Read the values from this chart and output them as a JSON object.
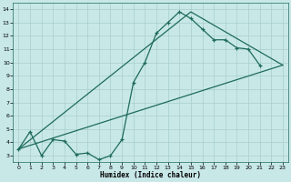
{
  "bg_color": "#c8e8e8",
  "grid_color": "#a8cece",
  "line_color": "#1e6b5a",
  "xlabel": "Humidex (Indice chaleur)",
  "xlim": [
    -0.5,
    23.5
  ],
  "ylim": [
    2.5,
    14.5
  ],
  "xticks": [
    0,
    1,
    2,
    3,
    4,
    5,
    6,
    7,
    8,
    9,
    10,
    11,
    12,
    13,
    14,
    15,
    16,
    17,
    18,
    19,
    20,
    21,
    22,
    23
  ],
  "yticks": [
    3,
    4,
    5,
    6,
    7,
    8,
    9,
    10,
    11,
    12,
    13,
    14
  ],
  "line1_x": [
    0,
    1,
    2,
    3,
    4,
    5,
    6,
    7,
    8,
    9,
    10,
    11,
    12,
    13,
    14,
    15,
    16,
    17,
    18,
    19,
    20,
    21
  ],
  "line1_y": [
    3.5,
    4.8,
    3.0,
    4.2,
    4.1,
    3.1,
    3.2,
    2.7,
    3.0,
    4.2,
    8.5,
    10.0,
    12.2,
    13.0,
    13.8,
    13.3,
    12.5,
    11.7,
    11.7,
    11.1,
    11.0,
    9.8
  ],
  "line2_x": [
    0,
    15,
    23
  ],
  "line2_y": [
    3.5,
    13.8,
    9.8
  ],
  "line3_x": [
    0,
    23
  ],
  "line3_y": [
    3.5,
    9.8
  ]
}
